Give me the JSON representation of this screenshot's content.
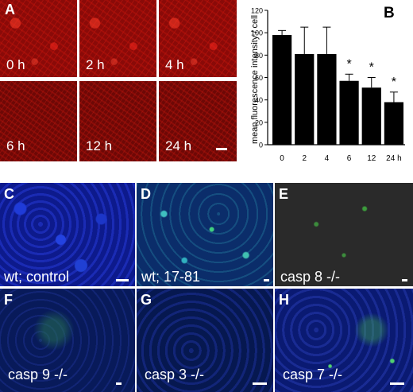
{
  "panel_a": {
    "label": "A",
    "tiles": [
      {
        "time": "0 h"
      },
      {
        "time": "2 h"
      },
      {
        "time": "4 h"
      },
      {
        "time": "6 h"
      },
      {
        "time": "12 h"
      },
      {
        "time": "24 h"
      }
    ]
  },
  "chart_data": {
    "type": "bar",
    "panel_label": "B",
    "categories": [
      "0",
      "2",
      "4",
      "6",
      "12",
      "24 h"
    ],
    "values": [
      98,
      81,
      81,
      57,
      51,
      38
    ],
    "errors": [
      4,
      24,
      24,
      6,
      9,
      9
    ],
    "significance": [
      "",
      "",
      "",
      "*",
      "*",
      "*"
    ],
    "ylabel": "mean fluorescence intensity / cell",
    "xlabel": "",
    "ylim": [
      0,
      120
    ],
    "yticks": [
      "0",
      "20",
      "40",
      "60",
      "80",
      "100",
      "120"
    ],
    "bar_color": "#000000",
    "grid": false
  },
  "panels": [
    {
      "letter": "C",
      "caption": "wt; control"
    },
    {
      "letter": "D",
      "caption": "wt; 17-81"
    },
    {
      "letter": "E",
      "caption": "casp 8 -/-"
    },
    {
      "letter": "F",
      "caption": "casp 9 -/-"
    },
    {
      "letter": "G",
      "caption": "casp 3 -/-"
    },
    {
      "letter": "H",
      "caption": "casp 7 -/-"
    }
  ]
}
